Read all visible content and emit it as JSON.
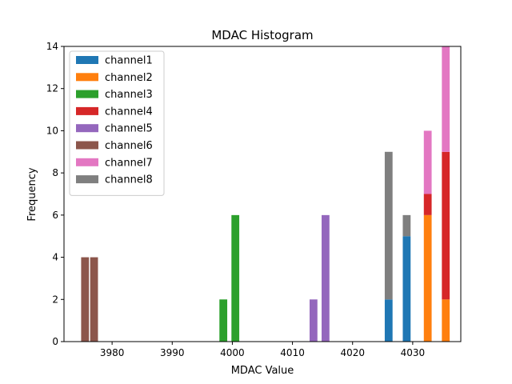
{
  "chart_data": {
    "type": "bar",
    "stacked": true,
    "title": "MDAC Histogram",
    "xlabel": "MDAC Value",
    "ylabel": "Frequency",
    "xlim": [
      3972,
      4038
    ],
    "ylim": [
      0,
      14
    ],
    "xticks": [
      3980,
      3990,
      4000,
      4010,
      4020,
      4030
    ],
    "yticks": [
      0,
      2,
      4,
      6,
      8,
      10,
      12,
      14
    ],
    "bar_width": 1.3,
    "legend_location": "upper-left",
    "series": [
      {
        "name": "channel1",
        "color": "#1f77b4",
        "bars": [
          {
            "x": 4026.0,
            "value": 2
          },
          {
            "x": 4029.0,
            "value": 5
          }
        ]
      },
      {
        "name": "channel2",
        "color": "#ff7f0e",
        "bars": [
          {
            "x": 4032.5,
            "value": 6
          },
          {
            "x": 4035.5,
            "value": 2
          }
        ]
      },
      {
        "name": "channel3",
        "color": "#2ca02c",
        "bars": [
          {
            "x": 3998.5,
            "value": 2
          },
          {
            "x": 4000.5,
            "value": 6
          }
        ]
      },
      {
        "name": "channel4",
        "color": "#d62728",
        "bars": [
          {
            "x": 4032.5,
            "value": 1
          },
          {
            "x": 4035.5,
            "value": 7
          }
        ]
      },
      {
        "name": "channel5",
        "color": "#9467bd",
        "bars": [
          {
            "x": 4013.5,
            "value": 2
          },
          {
            "x": 4015.5,
            "value": 6
          }
        ]
      },
      {
        "name": "channel6",
        "color": "#8c564b",
        "bars": [
          {
            "x": 3975.5,
            "value": 4
          },
          {
            "x": 3977.0,
            "value": 4
          }
        ]
      },
      {
        "name": "channel7",
        "color": "#e377c2",
        "bars": [
          {
            "x": 4032.5,
            "value": 3
          },
          {
            "x": 4035.5,
            "value": 5
          }
        ]
      },
      {
        "name": "channel8",
        "color": "#7f7f7f",
        "bars": [
          {
            "x": 4026.0,
            "value": 7
          },
          {
            "x": 4029.0,
            "value": 1
          }
        ]
      }
    ]
  }
}
